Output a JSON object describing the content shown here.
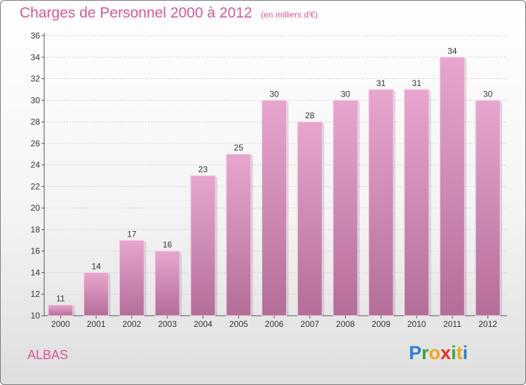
{
  "title": "Charges de Personnel 2000 à 2012",
  "subtitle": "(en milliers d'€)",
  "commune": "ALBAS",
  "logo": {
    "letters": [
      "P",
      "r",
      "o",
      "x",
      "i",
      "t",
      "i"
    ],
    "colors": [
      "#2f7fd1",
      "#3aa63a",
      "#f2a51c",
      "#e2322a",
      "#3aa63a",
      "#f2a51c",
      "#2f7fd1"
    ]
  },
  "colors": {
    "bar_top": "#e8a6cf",
    "bar_bottom": "#b36e98",
    "accent": "#d6569a"
  },
  "chart_data": {
    "type": "bar",
    "categories": [
      "2000",
      "2001",
      "2002",
      "2003",
      "2004",
      "2005",
      "2006",
      "2007",
      "2008",
      "2009",
      "2010",
      "2011",
      "2012"
    ],
    "values": [
      11,
      14,
      17,
      16,
      23,
      25,
      30,
      28,
      30,
      31,
      31,
      34,
      30
    ],
    "title": "Charges de Personnel 2000 à 2012",
    "subtitle": "(en milliers d'€)",
    "xlabel": "",
    "ylabel": "",
    "ylim": [
      10,
      36
    ],
    "yticks": [
      10,
      12,
      14,
      16,
      18,
      20,
      22,
      24,
      26,
      28,
      30,
      32,
      34,
      36
    ],
    "grid": true,
    "data_labels": true
  }
}
